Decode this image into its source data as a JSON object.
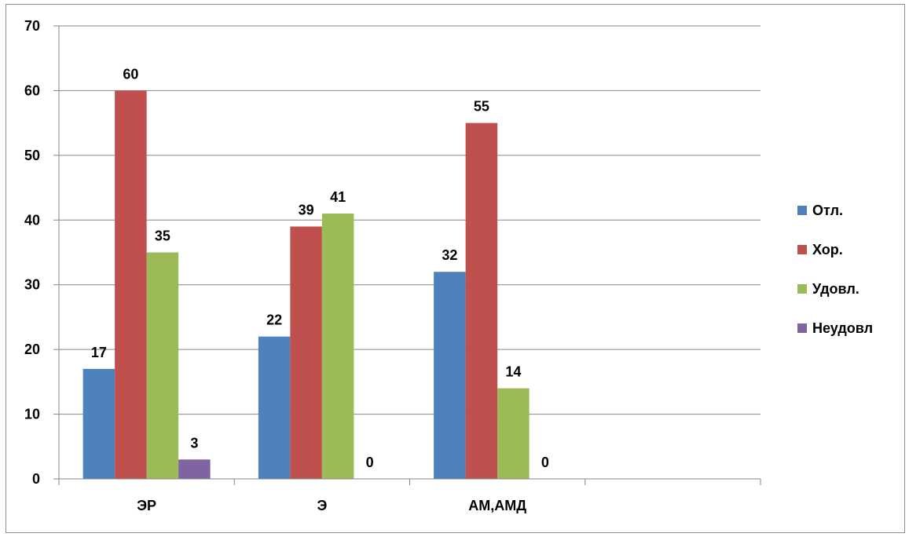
{
  "chart_data": {
    "type": "bar",
    "categories": [
      "ЭР",
      "Э",
      "АМ,АМД",
      ""
    ],
    "series": [
      {
        "name": "Отл.",
        "color": "#4f81bd",
        "values": [
          17,
          22,
          32,
          null
        ]
      },
      {
        "name": "Хор.",
        "color": "#c0504d",
        "values": [
          60,
          39,
          55,
          null
        ]
      },
      {
        "name": "Удовл.",
        "color": "#9bbb59",
        "values": [
          35,
          41,
          14,
          null
        ]
      },
      {
        "name": "Неудовл",
        "color": "#8064a2",
        "values": [
          3,
          0,
          0,
          null
        ]
      }
    ],
    "data_labels": [
      [
        17,
        22,
        32,
        null
      ],
      [
        60,
        39,
        55,
        null
      ],
      [
        35,
        41,
        14,
        null
      ],
      [
        3,
        0,
        0,
        null
      ]
    ],
    "ylim": [
      0,
      70
    ],
    "yticks": [
      0,
      10,
      20,
      30,
      40,
      50,
      60,
      70
    ],
    "grid": true,
    "legend_position": "right",
    "title": "",
    "xlabel": "",
    "ylabel": ""
  }
}
